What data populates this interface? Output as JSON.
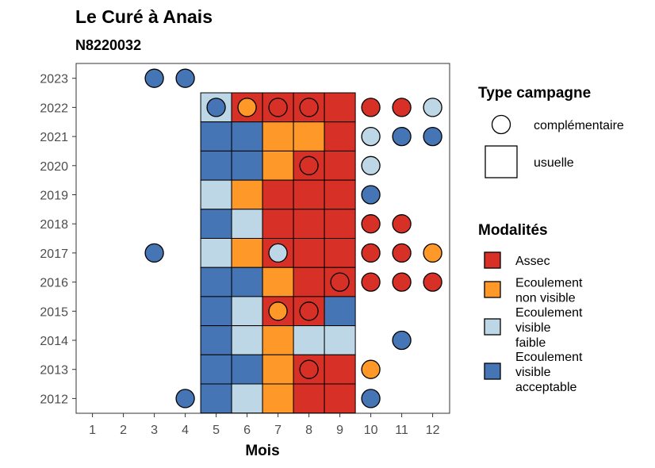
{
  "chart_data": {
    "type": "heatmap",
    "title": "Le Curé à Anais",
    "subtitle": "N8220032",
    "xlabel": "Mois",
    "ylabel": "",
    "x_ticks": [
      1,
      2,
      3,
      4,
      5,
      6,
      7,
      8,
      9,
      10,
      11,
      12
    ],
    "y_ticks": [
      2012,
      2013,
      2014,
      2015,
      2016,
      2017,
      2018,
      2019,
      2020,
      2021,
      2022,
      2023
    ],
    "grid": false,
    "modalities": [
      {
        "key": "assec",
        "label_lines": [
          "Assec"
        ],
        "color": "#D73027"
      },
      {
        "key": "nonvisible",
        "label_lines": [
          "Ecoulement",
          "non visible"
        ],
        "color": "#FE9929"
      },
      {
        "key": "faible",
        "label_lines": [
          "Ecoulement",
          "visible",
          "faible"
        ],
        "color": "#BDD7E7"
      },
      {
        "key": "acceptable",
        "label_lines": [
          "Ecoulement",
          "visible",
          "acceptable"
        ],
        "color": "#4575B4"
      }
    ],
    "legend_type": {
      "title": "Type campagne",
      "items": [
        {
          "shape": "circle",
          "label": "complémentaire"
        },
        {
          "shape": "square",
          "label": "usuelle"
        }
      ]
    },
    "legend_mod_title": "Modalités",
    "legend_placement": "right",
    "usuelle": [
      {
        "year": 2022,
        "months": {
          "5": "faible",
          "6": "assec",
          "7": "assec",
          "8": "assec",
          "9": "assec"
        }
      },
      {
        "year": 2021,
        "months": {
          "5": "acceptable",
          "6": "acceptable",
          "7": "nonvisible",
          "8": "nonvisible",
          "9": "assec"
        }
      },
      {
        "year": 2020,
        "months": {
          "5": "acceptable",
          "6": "acceptable",
          "7": "nonvisible",
          "8": "assec",
          "9": "assec"
        }
      },
      {
        "year": 2019,
        "months": {
          "5": "faible",
          "6": "nonvisible",
          "7": "assec",
          "8": "assec",
          "9": "assec"
        }
      },
      {
        "year": 2018,
        "months": {
          "5": "acceptable",
          "6": "faible",
          "7": "assec",
          "8": "assec",
          "9": "assec"
        }
      },
      {
        "year": 2017,
        "months": {
          "5": "faible",
          "6": "nonvisible",
          "7": "assec",
          "8": "assec",
          "9": "assec"
        }
      },
      {
        "year": 2016,
        "months": {
          "5": "acceptable",
          "6": "acceptable",
          "7": "nonvisible",
          "8": "assec",
          "9": "assec"
        }
      },
      {
        "year": 2015,
        "months": {
          "5": "acceptable",
          "6": "faible",
          "7": "assec",
          "8": "assec",
          "9": "acceptable"
        }
      },
      {
        "year": 2014,
        "months": {
          "5": "acceptable",
          "6": "faible",
          "7": "nonvisible",
          "8": "faible",
          "9": "faible"
        }
      },
      {
        "year": 2013,
        "months": {
          "5": "acceptable",
          "6": "acceptable",
          "7": "nonvisible",
          "8": "assec",
          "9": "assec"
        }
      },
      {
        "year": 2012,
        "months": {
          "5": "acceptable",
          "6": "faible",
          "7": "nonvisible",
          "8": "assec",
          "9": "assec"
        }
      }
    ],
    "complementaire": [
      {
        "year": 2023,
        "month": 3,
        "value": "acceptable"
      },
      {
        "year": 2023,
        "month": 4,
        "value": "acceptable"
      },
      {
        "year": 2022,
        "month": 5,
        "value": "acceptable"
      },
      {
        "year": 2022,
        "month": 6,
        "value": "nonvisible"
      },
      {
        "year": 2022,
        "month": 7,
        "value": "assec"
      },
      {
        "year": 2022,
        "month": 8,
        "value": "assec"
      },
      {
        "year": 2022,
        "month": 10,
        "value": "assec"
      },
      {
        "year": 2022,
        "month": 11,
        "value": "assec"
      },
      {
        "year": 2022,
        "month": 12,
        "value": "faible"
      },
      {
        "year": 2021,
        "month": 10,
        "value": "faible"
      },
      {
        "year": 2021,
        "month": 11,
        "value": "acceptable"
      },
      {
        "year": 2021,
        "month": 12,
        "value": "acceptable"
      },
      {
        "year": 2020,
        "month": 8,
        "value": "assec"
      },
      {
        "year": 2020,
        "month": 10,
        "value": "faible"
      },
      {
        "year": 2019,
        "month": 10,
        "value": "acceptable"
      },
      {
        "year": 2018,
        "month": 10,
        "value": "assec"
      },
      {
        "year": 2018,
        "month": 11,
        "value": "assec"
      },
      {
        "year": 2017,
        "month": 3,
        "value": "acceptable"
      },
      {
        "year": 2017,
        "month": 7,
        "value": "faible"
      },
      {
        "year": 2017,
        "month": 10,
        "value": "assec"
      },
      {
        "year": 2017,
        "month": 11,
        "value": "assec"
      },
      {
        "year": 2017,
        "month": 12,
        "value": "nonvisible"
      },
      {
        "year": 2016,
        "month": 9,
        "value": "assec"
      },
      {
        "year": 2016,
        "month": 10,
        "value": "assec"
      },
      {
        "year": 2016,
        "month": 11,
        "value": "assec"
      },
      {
        "year": 2016,
        "month": 12,
        "value": "assec"
      },
      {
        "year": 2015,
        "month": 7,
        "value": "nonvisible"
      },
      {
        "year": 2015,
        "month": 8,
        "value": "assec"
      },
      {
        "year": 2014,
        "month": 11,
        "value": "acceptable"
      },
      {
        "year": 2013,
        "month": 8,
        "value": "assec"
      },
      {
        "year": 2013,
        "month": 10,
        "value": "nonvisible"
      },
      {
        "year": 2012,
        "month": 4,
        "value": "acceptable"
      },
      {
        "year": 2012,
        "month": 10,
        "value": "acceptable"
      }
    ]
  }
}
